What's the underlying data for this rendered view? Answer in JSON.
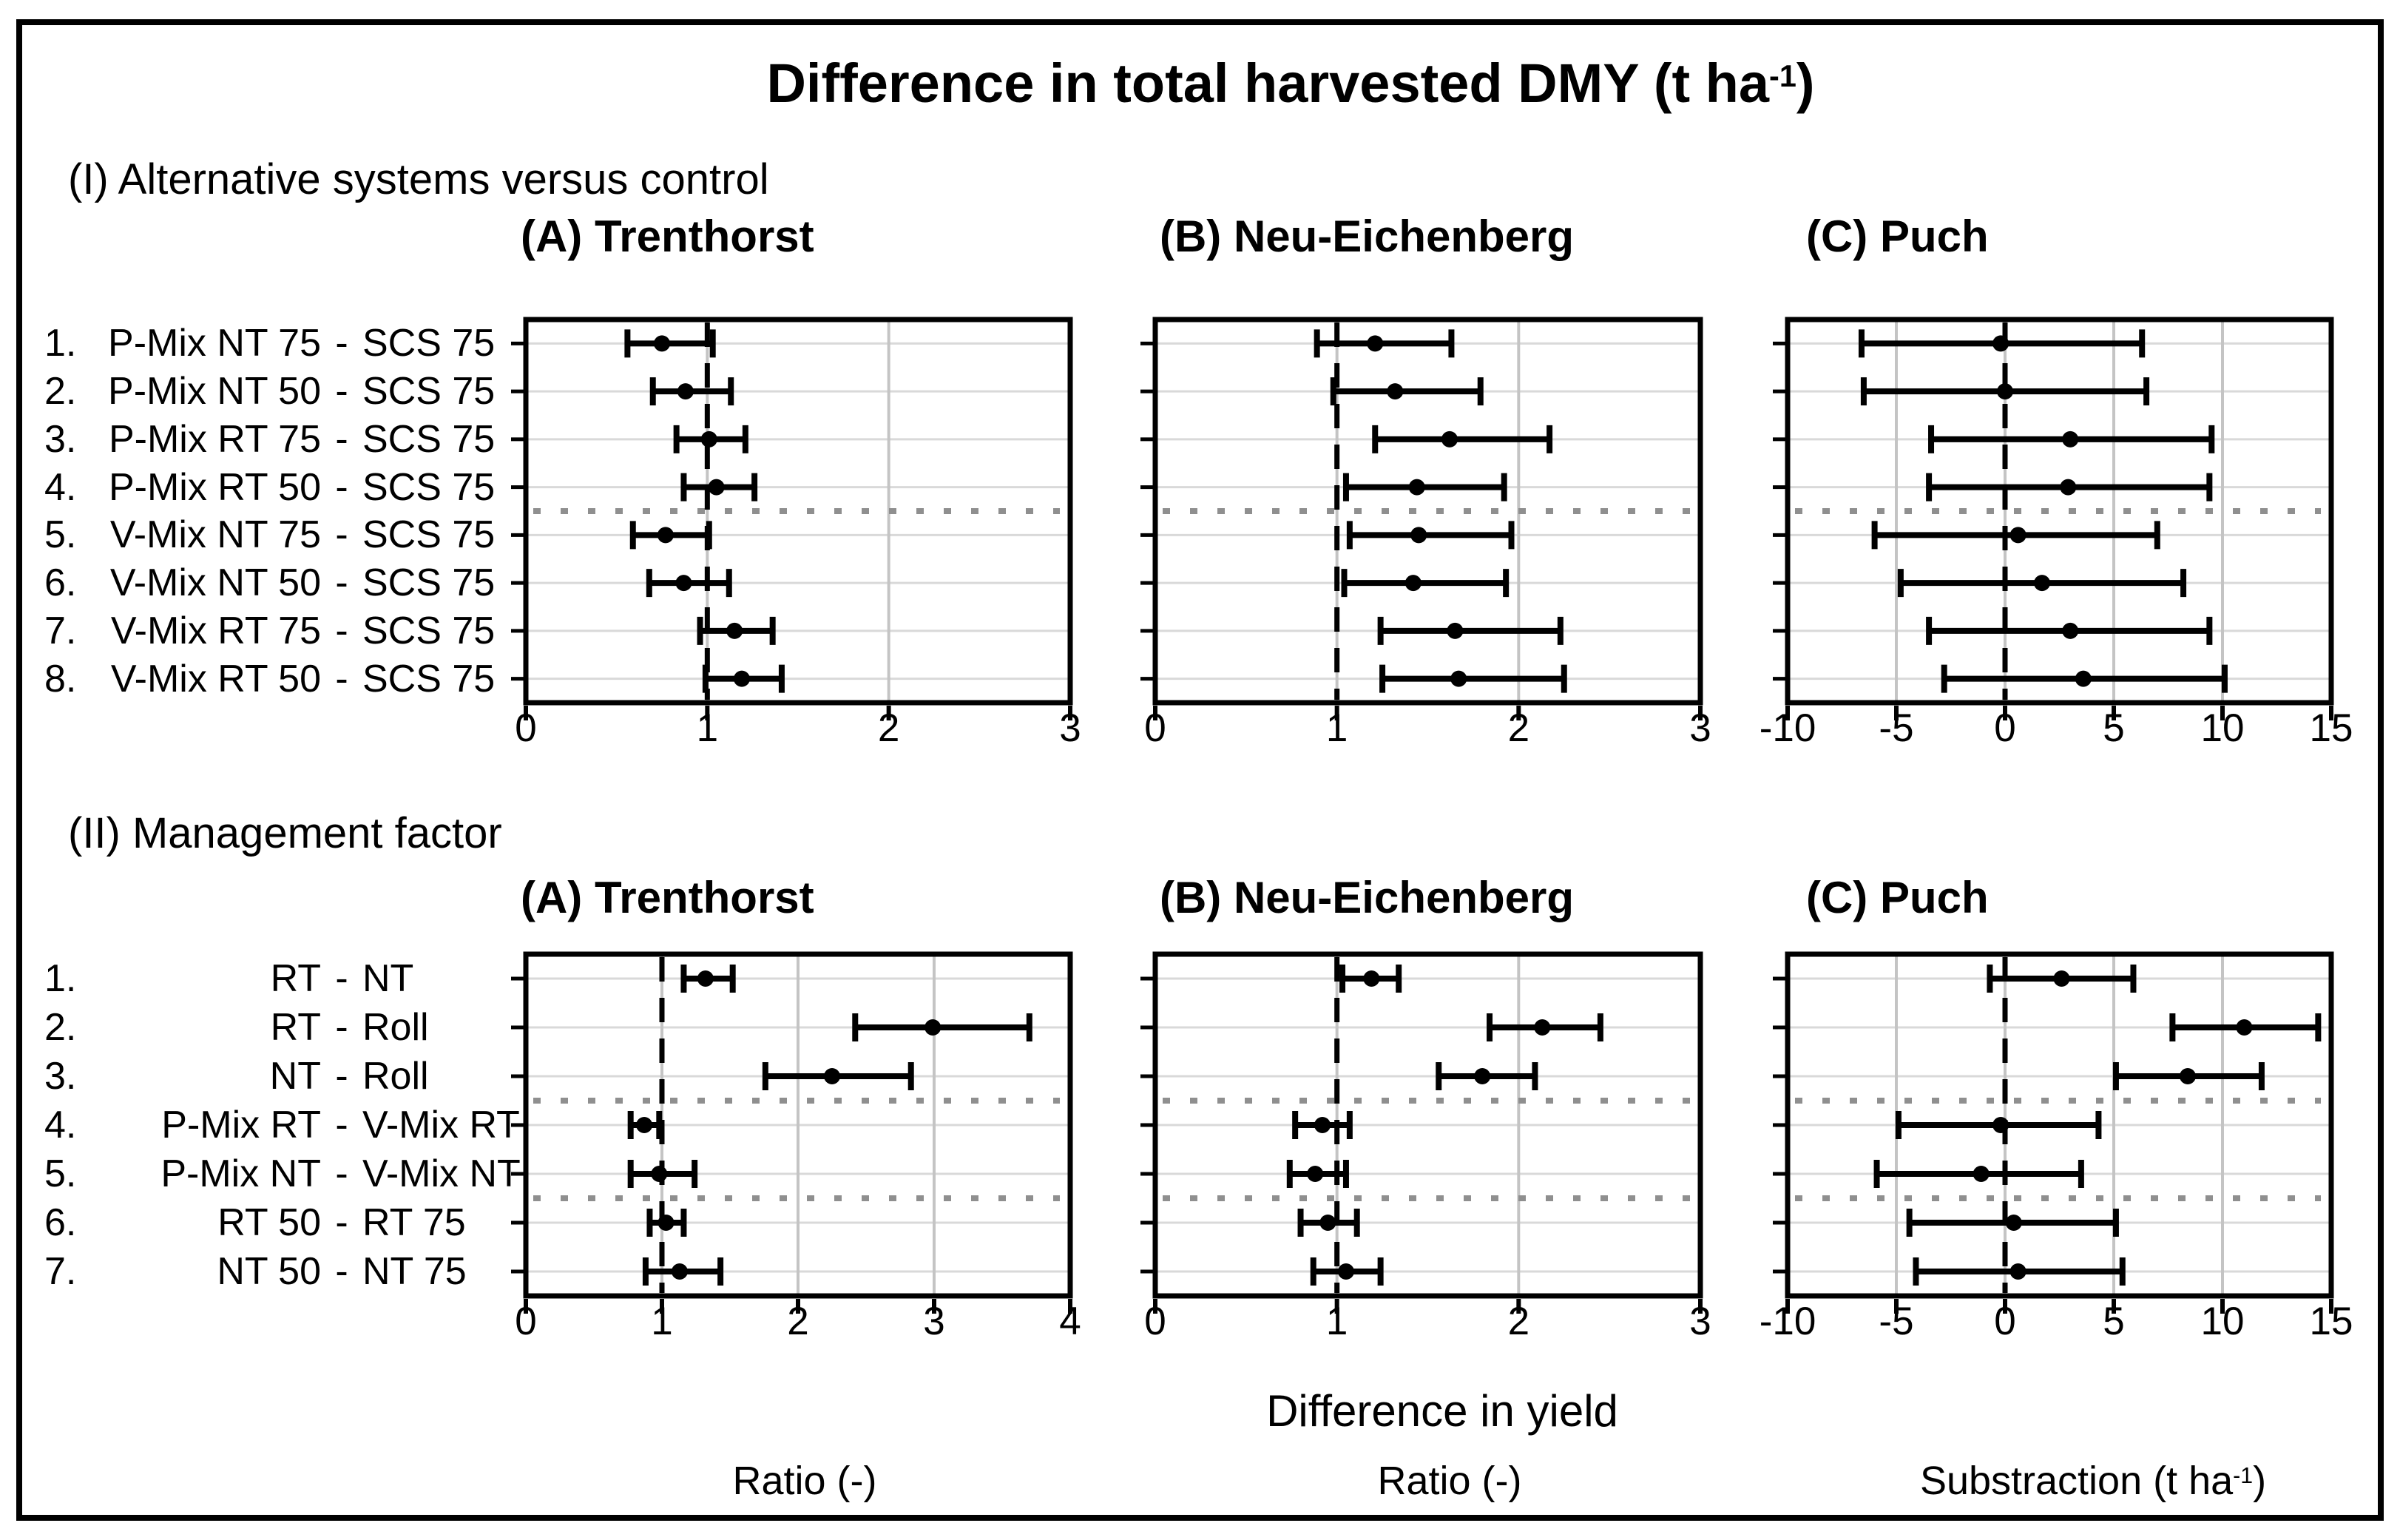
{
  "chart_data": {
    "type": "forest-dot-error",
    "title": "Difference in total harvested DMY (t ha-1)",
    "title_parts": {
      "pre": "Difference in total harvested DMY (t ha",
      "sup": "-1",
      "post": ")"
    },
    "xaxis_caption": "Difference in yield",
    "xlabel_units": [
      "Ratio (-)",
      "Ratio (-)",
      "Substraction (t ha-1)"
    ],
    "units": [
      {
        "text": "Ratio (-)"
      },
      {
        "text": "Ratio (-)"
      },
      {
        "text": "Substraction (t ha-1)",
        "pre": "Substraction (t ha",
        "sup": "-1",
        "post": ")"
      }
    ],
    "sections": [
      {
        "id": "I",
        "heading": "(I) Alternative systems versus control",
        "rows": [
          {
            "num": "1.",
            "left": "P-Mix NT 75",
            "right": "SCS 75"
          },
          {
            "num": "2.",
            "left": "P-Mix NT 50",
            "right": "SCS 75"
          },
          {
            "num": "3.",
            "left": "P-Mix RT 75",
            "right": "SCS 75"
          },
          {
            "num": "4.",
            "left": "P-Mix RT 50",
            "right": "SCS 75"
          },
          {
            "num": "5.",
            "left": "V-Mix NT 75",
            "right": "SCS 75"
          },
          {
            "num": "6.",
            "left": "V-Mix NT 50",
            "right": "SCS 75"
          },
          {
            "num": "7.",
            "left": "V-Mix RT 75",
            "right": "SCS 75"
          },
          {
            "num": "8.",
            "left": "V-Mix RT 50",
            "right": "SCS 75"
          }
        ],
        "separators_after_rows": [
          4
        ],
        "panels": [
          {
            "title": "(A) Trenthorst",
            "xlim": [
              0,
              3
            ],
            "xticks": [
              0,
              1,
              2,
              3
            ],
            "ref_x": 1,
            "points": [
              {
                "x": 0.75,
                "lo": 0.56,
                "hi": 1.03
              },
              {
                "x": 0.88,
                "lo": 0.7,
                "hi": 1.13
              },
              {
                "x": 1.01,
                "lo": 0.83,
                "hi": 1.21
              },
              {
                "x": 1.05,
                "lo": 0.87,
                "hi": 1.26
              },
              {
                "x": 0.77,
                "lo": 0.59,
                "hi": 1.01
              },
              {
                "x": 0.87,
                "lo": 0.68,
                "hi": 1.12
              },
              {
                "x": 1.15,
                "lo": 0.96,
                "hi": 1.36
              },
              {
                "x": 1.19,
                "lo": 0.99,
                "hi": 1.41
              }
            ]
          },
          {
            "title": "(B) Neu-Eichenberg",
            "xlim": [
              0,
              3
            ],
            "xticks": [
              0,
              1,
              2,
              3
            ],
            "ref_x": 1,
            "points": [
              {
                "x": 1.21,
                "lo": 0.89,
                "hi": 1.63
              },
              {
                "x": 1.32,
                "lo": 0.98,
                "hi": 1.79
              },
              {
                "x": 1.62,
                "lo": 1.21,
                "hi": 2.17
              },
              {
                "x": 1.44,
                "lo": 1.05,
                "hi": 1.92
              },
              {
                "x": 1.45,
                "lo": 1.07,
                "hi": 1.96
              },
              {
                "x": 1.42,
                "lo": 1.04,
                "hi": 1.93
              },
              {
                "x": 1.65,
                "lo": 1.24,
                "hi": 2.23
              },
              {
                "x": 1.67,
                "lo": 1.25,
                "hi": 2.25
              }
            ]
          },
          {
            "title": "(C) Puch",
            "xlim": [
              -10,
              15
            ],
            "xticks": [
              -10,
              -5,
              0,
              5,
              10,
              15
            ],
            "ref_x": 0,
            "points": [
              {
                "x": -0.2,
                "lo": -6.6,
                "hi": 6.3
              },
              {
                "x": 0.0,
                "lo": -6.5,
                "hi": 6.5
              },
              {
                "x": 3.0,
                "lo": -3.4,
                "hi": 9.5
              },
              {
                "x": 2.9,
                "lo": -3.5,
                "hi": 9.4
              },
              {
                "x": 0.6,
                "lo": -6.0,
                "hi": 7.0
              },
              {
                "x": 1.7,
                "lo": -4.8,
                "hi": 8.2
              },
              {
                "x": 3.0,
                "lo": -3.5,
                "hi": 9.4
              },
              {
                "x": 3.6,
                "lo": -2.8,
                "hi": 10.1
              }
            ]
          }
        ]
      },
      {
        "id": "II",
        "heading": "(II) Management factor",
        "rows": [
          {
            "num": "1.",
            "left": "RT",
            "right": "NT"
          },
          {
            "num": "2.",
            "left": "RT",
            "right": "Roll"
          },
          {
            "num": "3.",
            "left": "NT",
            "right": "Roll"
          },
          {
            "num": "4.",
            "left": "P-Mix RT",
            "right": "V-Mix RT"
          },
          {
            "num": "5.",
            "left": "P-Mix NT",
            "right": "V-Mix NT"
          },
          {
            "num": "6.",
            "left": "RT 50",
            "right": "RT 75"
          },
          {
            "num": "7.",
            "left": "NT 50",
            "right": "NT 75"
          }
        ],
        "separators_after_rows": [
          3,
          5
        ],
        "panels": [
          {
            "title": "(A) Trenthorst",
            "xlim": [
              0,
              4
            ],
            "xticks": [
              0,
              1,
              2,
              3,
              4
            ],
            "ref_x": 1,
            "points": [
              {
                "x": 1.32,
                "lo": 1.16,
                "hi": 1.52
              },
              {
                "x": 2.99,
                "lo": 2.42,
                "hi": 3.7
              },
              {
                "x": 2.25,
                "lo": 1.76,
                "hi": 2.83
              },
              {
                "x": 0.87,
                "lo": 0.77,
                "hi": 0.98
              },
              {
                "x": 0.98,
                "lo": 0.77,
                "hi": 1.24
              },
              {
                "x": 1.03,
                "lo": 0.91,
                "hi": 1.16
              },
              {
                "x": 1.13,
                "lo": 0.88,
                "hi": 1.43
              }
            ]
          },
          {
            "title": "(B) Neu-Eichenberg",
            "xlim": [
              0,
              3
            ],
            "xticks": [
              0,
              1,
              2,
              3
            ],
            "ref_x": 1,
            "points": [
              {
                "x": 1.19,
                "lo": 1.03,
                "hi": 1.34
              },
              {
                "x": 2.13,
                "lo": 1.84,
                "hi": 2.45
              },
              {
                "x": 1.8,
                "lo": 1.56,
                "hi": 2.09
              },
              {
                "x": 0.92,
                "lo": 0.77,
                "hi": 1.07
              },
              {
                "x": 0.88,
                "lo": 0.74,
                "hi": 1.05
              },
              {
                "x": 0.95,
                "lo": 0.8,
                "hi": 1.11
              },
              {
                "x": 1.05,
                "lo": 0.87,
                "hi": 1.24
              }
            ]
          },
          {
            "title": "(C) Puch",
            "xlim": [
              -10,
              15
            ],
            "xticks": [
              -10,
              -5,
              0,
              5,
              10,
              15
            ],
            "ref_x": 0,
            "points": [
              {
                "x": 2.6,
                "lo": -0.7,
                "hi": 5.9
              },
              {
                "x": 11.0,
                "lo": 7.7,
                "hi": 14.4
              },
              {
                "x": 8.4,
                "lo": 5.1,
                "hi": 11.8
              },
              {
                "x": -0.2,
                "lo": -4.9,
                "hi": 4.3
              },
              {
                "x": -1.1,
                "lo": -5.9,
                "hi": 3.5
              },
              {
                "x": 0.4,
                "lo": -4.4,
                "hi": 5.1
              },
              {
                "x": 0.6,
                "lo": -4.1,
                "hi": 5.4
              }
            ]
          }
        ]
      }
    ]
  },
  "colors": {
    "ink": "#000000",
    "background": "#ffffff",
    "grid_v": "#c4c4c4",
    "grid_h": "#d9d9d9",
    "separator": "#8f8f8f"
  }
}
